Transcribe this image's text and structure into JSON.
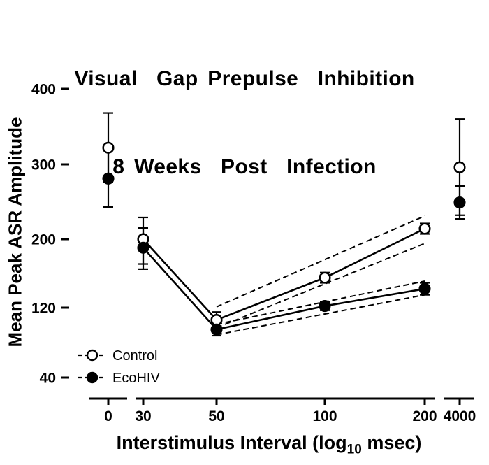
{
  "title": {
    "line1": "Visual  Gap Prepulse  Inhibition",
    "line2": "8 Weeks  Post  Infection"
  },
  "y_axis": {
    "label": "Mean Peak ASR Amplitude"
  },
  "x_axis": {
    "label_prefix": "Interstimulus Interval (log",
    "label_sub": "10",
    "label_suffix": " msec)"
  },
  "legend": [
    {
      "label": "Control",
      "marker": "open"
    },
    {
      "label": "EcoHIV",
      "marker": "filled"
    }
  ],
  "chart_data": {
    "type": "line",
    "title": "Visual Gap Prepulse Inhibition 8 Weeks Post Infection",
    "xlabel": "Interstimulus Interval (log10 msec)",
    "ylabel": "Mean Peak ASR Amplitude",
    "x_ticks": [
      0,
      30,
      50,
      100,
      200,
      4000
    ],
    "y_ticks": [
      400,
      300,
      200,
      120,
      40
    ],
    "ylim": [
      40,
      400
    ],
    "x_axis_breaks": [
      [
        0,
        30
      ],
      [
        200,
        4000
      ]
    ],
    "grid": false,
    "legend_position": "lower-left-inside",
    "x": [
      0,
      30,
      50,
      100,
      200,
      4000
    ],
    "series": [
      {
        "name": "Control",
        "marker": "open",
        "means": [
          322,
          200,
          106,
          155,
          214,
          296
        ],
        "sem": [
          46,
          29,
          9,
          6,
          7,
          64
        ],
        "line_x": [
          30,
          50,
          100,
          200
        ],
        "ci_upper": {
          "x": [
            50,
            200
          ],
          "y": [
            121,
            231
          ]
        },
        "ci_lower": {
          "x": [
            50,
            200
          ],
          "y": [
            97,
            195
          ]
        }
      },
      {
        "name": "EcoHIV",
        "marker": "filled",
        "means": [
          281,
          190,
          95,
          122,
          142,
          249
        ],
        "sem": [
          38,
          25,
          7,
          5,
          7,
          22
        ],
        "line_x": [
          30,
          50,
          100,
          200
        ],
        "ci_upper": {
          "x": [
            50,
            200
          ],
          "y": [
            101,
            151
          ]
        },
        "ci_lower": {
          "x": [
            50,
            200
          ],
          "y": [
            89,
            135
          ]
        }
      }
    ]
  }
}
